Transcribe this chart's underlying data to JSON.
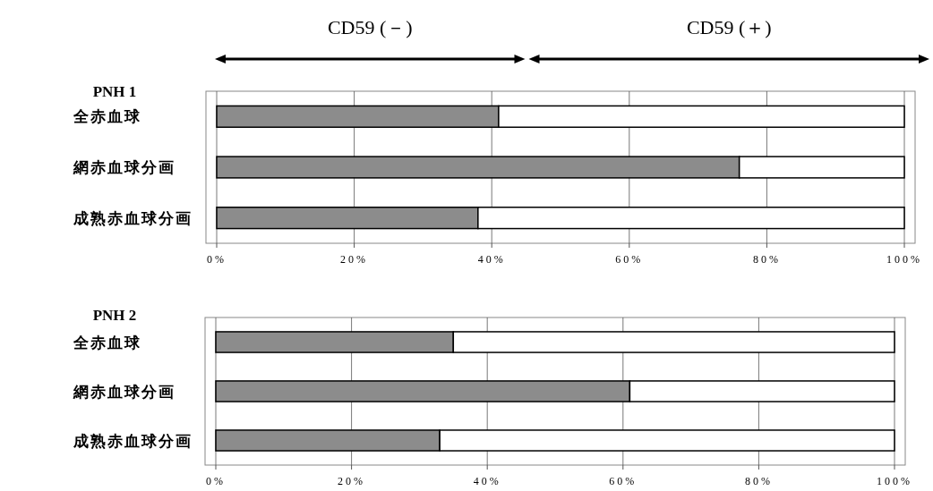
{
  "chart_data": [
    {
      "type": "bar",
      "title": "PNH 1",
      "orientation": "horizontal",
      "stacked": true,
      "grid": "x",
      "annotations": [
        "CD59 (－)",
        "CD59 (＋)"
      ],
      "categories": [
        "全赤血球",
        "網赤血球分画",
        "成熟赤血球分画"
      ],
      "series": [
        {
          "color": "#8c8c8c",
          "values": [
            41,
            76,
            38
          ]
        },
        {
          "color": "#ffffff",
          "values": [
            59,
            24,
            62
          ]
        }
      ],
      "xlim": [
        0,
        100
      ],
      "xticks": [
        {
          "value": 0,
          "label": "0%"
        },
        {
          "value": 20,
          "label": "20%"
        },
        {
          "value": 40,
          "label": "40%"
        },
        {
          "value": 60,
          "label": "60%"
        },
        {
          "value": 80,
          "label": "80%"
        },
        {
          "value": 100,
          "label": "100%"
        }
      ]
    },
    {
      "type": "bar",
      "title": "PNH 2",
      "orientation": "horizontal",
      "stacked": true,
      "grid": "x",
      "categories": [
        "全赤血球",
        "網赤血球分画",
        "成熟赤血球分画"
      ],
      "series": [
        {
          "color": "#8c8c8c",
          "values": [
            35,
            61,
            33
          ]
        },
        {
          "color": "#ffffff",
          "values": [
            65,
            39,
            67
          ]
        }
      ],
      "xlim": [
        0,
        100
      ],
      "xticks": [
        {
          "value": 0,
          "label": "0%"
        },
        {
          "value": 20,
          "label": "20%"
        },
        {
          "value": 40,
          "label": "40%"
        },
        {
          "value": 60,
          "label": "60%"
        },
        {
          "value": 80,
          "label": "80%"
        },
        {
          "value": 100,
          "label": "100%"
        }
      ]
    }
  ]
}
